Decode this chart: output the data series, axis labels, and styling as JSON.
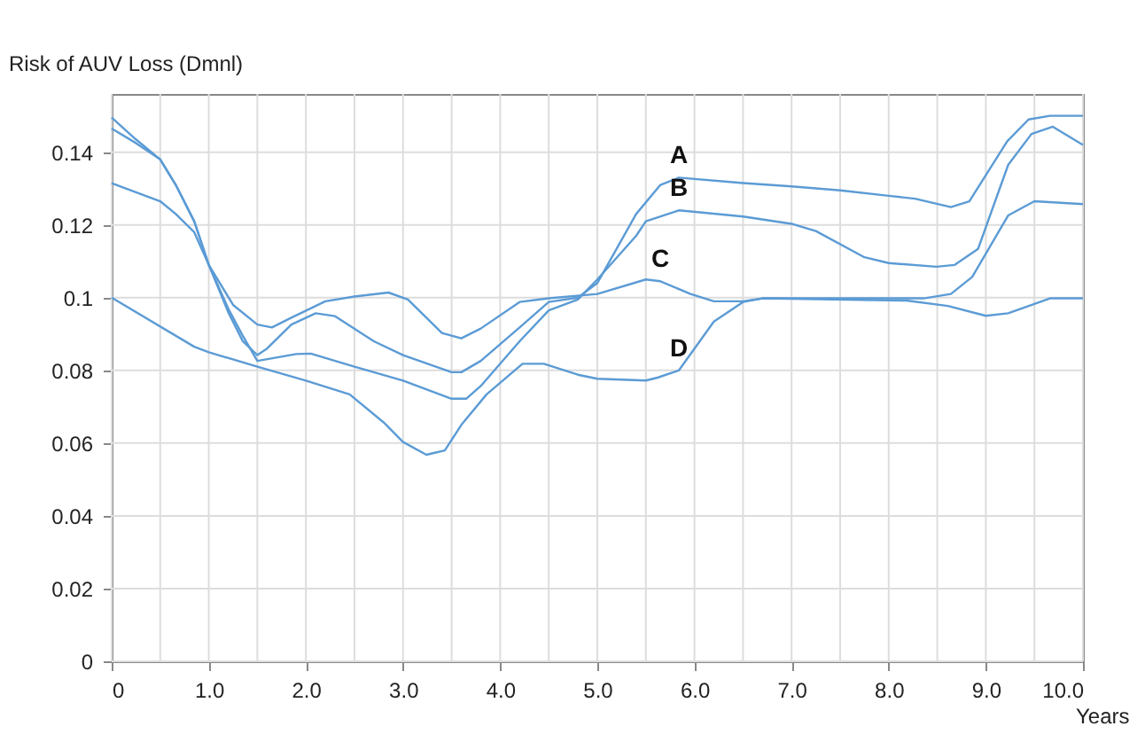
{
  "chart_data": {
    "type": "line",
    "ylabel": "Risk of AUV Loss (Dmnl)",
    "xlabel": "Years",
    "xlim": [
      0,
      10
    ],
    "xticks": [
      {
        "value": 0,
        "label": "0"
      },
      {
        "value": 0.5,
        "label": null
      },
      {
        "value": 1,
        "label": "1.0"
      },
      {
        "value": 1.5,
        "label": null
      },
      {
        "value": 2,
        "label": "2.0"
      },
      {
        "value": 2.5,
        "label": null
      },
      {
        "value": 3,
        "label": "3.0"
      },
      {
        "value": 3.5,
        "label": null
      },
      {
        "value": 4,
        "label": "4.0"
      },
      {
        "value": 4.5,
        "label": null
      },
      {
        "value": 5,
        "label": "5.0"
      },
      {
        "value": 5.5,
        "label": null
      },
      {
        "value": 6,
        "label": "6.0"
      },
      {
        "value": 6.5,
        "label": null
      },
      {
        "value": 7,
        "label": "7.0"
      },
      {
        "value": 7.5,
        "label": null
      },
      {
        "value": 8,
        "label": "8.0"
      },
      {
        "value": 8.5,
        "label": null
      },
      {
        "value": 9,
        "label": "9.0"
      },
      {
        "value": 9.5,
        "label": null
      },
      {
        "value": 10,
        "label": "10.0"
      }
    ],
    "ylim": [
      0,
      0.156
    ],
    "yticks": [
      0,
      0.02,
      0.04,
      0.06,
      0.08,
      0.1,
      0.12,
      0.14
    ],
    "grid": true,
    "legend": false,
    "line_style": "solid",
    "marker": "none",
    "series": [
      {
        "name": "A",
        "color": "#5b9bd5",
        "x": [
          0,
          0.25,
          0.5,
          0.66,
          0.85,
          1.0,
          1.2,
          1.35,
          1.5,
          1.6,
          1.85,
          2.1,
          2.3,
          2.7,
          3.0,
          3.5,
          3.6,
          3.8,
          4.2,
          4.5,
          4.8,
          5.0,
          5.4,
          5.65,
          5.84,
          6.5,
          7.0,
          7.5,
          8.0,
          8.27,
          8.64,
          8.83,
          9.22,
          9.44,
          9.66,
          10
        ],
        "values": [
          0.1495,
          0.1435,
          0.138,
          0.131,
          0.121,
          0.109,
          0.096,
          0.088,
          0.0842,
          0.086,
          0.0926,
          0.0957,
          0.0949,
          0.088,
          0.0842,
          0.0795,
          0.0795,
          0.0826,
          0.0918,
          0.0988,
          0.1,
          0.104,
          0.123,
          0.131,
          0.133,
          0.1315,
          0.1306,
          0.1295,
          0.128,
          0.1272,
          0.1249,
          0.1265,
          0.143,
          0.149,
          0.15,
          0.15
        ]
      },
      {
        "name": "B",
        "color": "#5b9bd5",
        "x": [
          0,
          0.25,
          0.5,
          0.66,
          0.85,
          1.0,
          1.2,
          1.35,
          1.5,
          1.9,
          2.05,
          2.5,
          3.0,
          3.5,
          3.65,
          3.8,
          4.2,
          4.5,
          4.8,
          5.0,
          5.4,
          5.5,
          5.84,
          6.5,
          7.0,
          7.25,
          7.75,
          8.0,
          8.49,
          8.68,
          8.92,
          9.23,
          9.47,
          9.69,
          10
        ],
        "values": [
          0.1465,
          0.1425,
          0.138,
          0.131,
          0.121,
          0.109,
          0.097,
          0.0895,
          0.0826,
          0.0845,
          0.0846,
          0.081,
          0.0772,
          0.0722,
          0.0722,
          0.0757,
          0.088,
          0.0965,
          0.0995,
          0.105,
          0.117,
          0.121,
          0.124,
          0.1223,
          0.1203,
          0.1183,
          0.1111,
          0.1095,
          0.1085,
          0.109,
          0.1134,
          0.1365,
          0.145,
          0.147,
          0.142
        ]
      },
      {
        "name": "C",
        "color": "#5b9bd5",
        "x": [
          0,
          0.5,
          0.66,
          0.85,
          1.0,
          1.25,
          1.5,
          1.65,
          1.85,
          2.2,
          2.5,
          2.85,
          3.05,
          3.4,
          3.6,
          3.8,
          4.2,
          4.5,
          5.0,
          5.5,
          5.65,
          5.96,
          6.2,
          6.5,
          6.7,
          8.18,
          8.61,
          9.0,
          9.23,
          9.66,
          10
        ],
        "values": [
          0.1315,
          0.1265,
          0.123,
          0.118,
          0.109,
          0.098,
          0.0926,
          0.0918,
          0.0945,
          0.099,
          0.1003,
          0.1014,
          0.0995,
          0.0903,
          0.0888,
          0.0915,
          0.0988,
          0.0998,
          0.101,
          0.105,
          0.1045,
          0.101,
          0.099,
          0.099,
          0.0998,
          0.0992,
          0.0977,
          0.095,
          0.0957,
          0.0998,
          0.0998
        ]
      },
      {
        "name": "D",
        "color": "#5b9bd5",
        "x": [
          0,
          0.85,
          1.0,
          1.5,
          2.0,
          2.45,
          2.8,
          3.0,
          3.24,
          3.43,
          3.6,
          3.86,
          4.23,
          4.45,
          4.8,
          5.0,
          5.5,
          5.62,
          5.84,
          6.2,
          6.5,
          6.7,
          8.36,
          8.64,
          8.86,
          9.23,
          9.5,
          10
        ],
        "values": [
          0.1,
          0.0865,
          0.085,
          0.081,
          0.0772,
          0.0734,
          0.0657,
          0.0603,
          0.0568,
          0.058,
          0.065,
          0.0734,
          0.0818,
          0.0818,
          0.0788,
          0.0777,
          0.0772,
          0.078,
          0.08,
          0.0934,
          0.0988,
          0.0998,
          0.0998,
          0.101,
          0.1057,
          0.1226,
          0.1265,
          0.1257
        ]
      }
    ]
  }
}
